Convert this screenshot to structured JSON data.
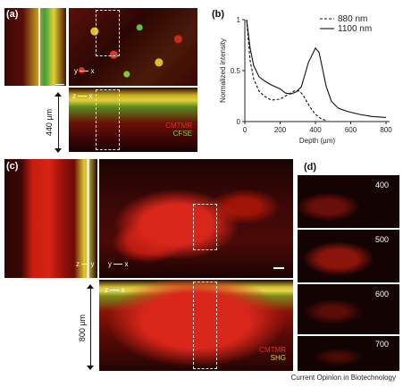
{
  "panels": {
    "a": {
      "label": "(a)",
      "stains": [
        {
          "text": "CMTMR",
          "color": "#e0302a"
        },
        {
          "text": "CFSE",
          "color": "#7fd03a"
        }
      ],
      "depth_label": "440 µm",
      "axis_top": {
        "y": "y",
        "x": "x"
      },
      "axis_side": {
        "z": "z",
        "x": "x"
      }
    },
    "b": {
      "label": "(b)",
      "legend": [
        {
          "line": "dashed",
          "text": "880 nm"
        },
        {
          "line": "solid",
          "text": "1100 nm"
        }
      ]
    },
    "c": {
      "label": "(c)",
      "stains": [
        {
          "text": "CMTMR",
          "color": "#e0302a"
        },
        {
          "text": "SHG",
          "color": "#c9c64a"
        }
      ],
      "depth_label": "800 µm",
      "axis_top": {
        "y": "y",
        "x": "x"
      },
      "axis_side": {
        "z": "z",
        "x": "x"
      },
      "axis_left": {
        "z": "z",
        "y": "y"
      }
    },
    "d": {
      "label": "(d)",
      "depths": [
        "400",
        "500",
        "600",
        "700"
      ]
    }
  },
  "credit": "Current Opinion in Biotechnology",
  "chart_data": {
    "type": "line",
    "title": "",
    "xlabel": "Depth (µm)",
    "ylabel": "Normalized intensity",
    "xlim": [
      0,
      820
    ],
    "ylim": [
      0,
      1.0
    ],
    "xticks": [
      "0",
      "200",
      "400",
      "600",
      "800"
    ],
    "yticks": [
      "0",
      "0.5",
      "1"
    ],
    "x_axis_partial_labels": [
      "0",
      "200",
      "400",
      "600",
      "800"
    ],
    "series": [
      {
        "name": "880 nm",
        "style": "dashed",
        "x": [
          10,
          30,
          50,
          80,
          110,
          150,
          200,
          250,
          280,
          310,
          330,
          350,
          370,
          400,
          430,
          460
        ],
        "y": [
          1.0,
          0.6,
          0.42,
          0.3,
          0.25,
          0.21,
          0.22,
          0.27,
          0.3,
          0.3,
          0.26,
          0.2,
          0.14,
          0.07,
          0.03,
          0.01
        ]
      },
      {
        "name": "1100 nm",
        "style": "solid",
        "x": [
          10,
          30,
          50,
          80,
          110,
          150,
          200,
          230,
          260,
          290,
          320,
          340,
          360,
          380,
          400,
          420,
          440,
          460,
          490,
          530,
          580,
          650,
          720,
          800
        ],
        "y": [
          1.0,
          0.72,
          0.55,
          0.44,
          0.4,
          0.36,
          0.32,
          0.28,
          0.27,
          0.29,
          0.34,
          0.46,
          0.58,
          0.65,
          0.72,
          0.68,
          0.52,
          0.35,
          0.2,
          0.13,
          0.1,
          0.07,
          0.05,
          0.04
        ]
      }
    ]
  }
}
